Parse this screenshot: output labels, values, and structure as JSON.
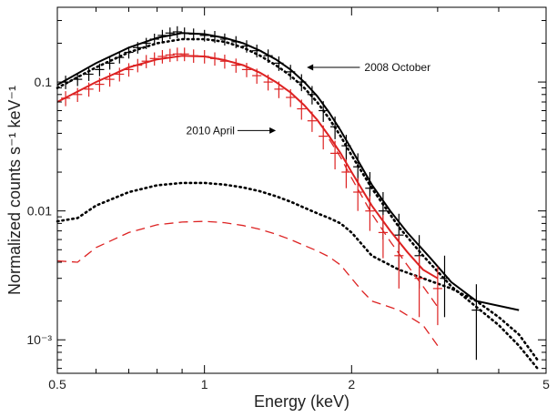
{
  "chart_data": {
    "type": "line",
    "xlabel": "Energy (keV)",
    "ylabel": "Normalized counts s⁻¹ keV⁻¹",
    "x_scale": "log",
    "y_scale": "log",
    "xlim": [
      0.5,
      5
    ],
    "ylim": [
      0.00055,
      0.38
    ],
    "x_ticks": [
      {
        "value": 0.5,
        "label": "0.5"
      },
      {
        "value": 1,
        "label": "1"
      },
      {
        "value": 2,
        "label": "2"
      },
      {
        "value": 5,
        "label": "5"
      }
    ],
    "y_ticks": [
      {
        "value": 0.1,
        "label": "0.1"
      },
      {
        "value": 0.01,
        "label": "0.01"
      },
      {
        "value": 0.001,
        "label": "10⁻³"
      }
    ],
    "annotations": [
      {
        "text": "2008 October",
        "x": 1.95,
        "y": 0.13
      },
      {
        "text": "2010 April",
        "x": 1.23,
        "y": 0.042
      }
    ],
    "series": [
      {
        "name": "2008 October",
        "kind": "data-with-errors",
        "color": "#000000",
        "points": [
          [
            0.52,
            0.1,
            0.012
          ],
          [
            0.55,
            0.105,
            0.012
          ],
          [
            0.58,
            0.115,
            0.013
          ],
          [
            0.61,
            0.125,
            0.014
          ],
          [
            0.64,
            0.14,
            0.015
          ],
          [
            0.67,
            0.155,
            0.016
          ],
          [
            0.7,
            0.17,
            0.018
          ],
          [
            0.73,
            0.185,
            0.019
          ],
          [
            0.76,
            0.2,
            0.02
          ],
          [
            0.79,
            0.215,
            0.022
          ],
          [
            0.82,
            0.23,
            0.024
          ],
          [
            0.85,
            0.24,
            0.025
          ],
          [
            0.88,
            0.245,
            0.026
          ],
          [
            0.91,
            0.24,
            0.025
          ],
          [
            0.95,
            0.235,
            0.025
          ],
          [
            1.0,
            0.23,
            0.024
          ],
          [
            1.05,
            0.225,
            0.024
          ],
          [
            1.1,
            0.215,
            0.023
          ],
          [
            1.16,
            0.205,
            0.022
          ],
          [
            1.22,
            0.19,
            0.021
          ],
          [
            1.28,
            0.175,
            0.02
          ],
          [
            1.35,
            0.16,
            0.019
          ],
          [
            1.42,
            0.14,
            0.018
          ],
          [
            1.5,
            0.12,
            0.016
          ],
          [
            1.58,
            0.1,
            0.015
          ],
          [
            1.66,
            0.08,
            0.013
          ],
          [
            1.75,
            0.06,
            0.011
          ],
          [
            1.85,
            0.045,
            0.009
          ],
          [
            1.95,
            0.032,
            0.007
          ],
          [
            2.06,
            0.022,
            0.006
          ],
          [
            2.18,
            0.015,
            0.005
          ],
          [
            2.32,
            0.01,
            0.004
          ],
          [
            2.5,
            0.0065,
            0.003
          ],
          [
            2.75,
            0.0045,
            0.002
          ],
          [
            3.1,
            0.003,
            0.0015
          ],
          [
            3.6,
            0.0017,
            0.001
          ]
        ]
      },
      {
        "name": "2008 October model",
        "kind": "model",
        "color": "#000000",
        "style": "solid",
        "points": [
          [
            0.5,
            0.095
          ],
          [
            0.6,
            0.14
          ],
          [
            0.7,
            0.185
          ],
          [
            0.8,
            0.22
          ],
          [
            0.9,
            0.24
          ],
          [
            1.0,
            0.235
          ],
          [
            1.1,
            0.22
          ],
          [
            1.2,
            0.2
          ],
          [
            1.3,
            0.175
          ],
          [
            1.4,
            0.15
          ],
          [
            1.5,
            0.125
          ],
          [
            1.6,
            0.1
          ],
          [
            1.7,
            0.078
          ],
          [
            1.8,
            0.058
          ],
          [
            1.9,
            0.042
          ],
          [
            2.0,
            0.03
          ],
          [
            2.2,
            0.016
          ],
          [
            2.4,
            0.01
          ],
          [
            2.6,
            0.0068
          ],
          [
            2.9,
            0.0043
          ],
          [
            3.2,
            0.0028
          ],
          [
            3.6,
            0.002
          ],
          [
            4.4,
            0.0017
          ]
        ]
      },
      {
        "name": "2008 October total (dotted)",
        "kind": "model",
        "color": "#000000",
        "style": "dotted",
        "points": [
          [
            0.5,
            0.09
          ],
          [
            0.6,
            0.13
          ],
          [
            0.7,
            0.17
          ],
          [
            0.8,
            0.2
          ],
          [
            0.9,
            0.215
          ],
          [
            1.0,
            0.215
          ],
          [
            1.1,
            0.205
          ],
          [
            1.2,
            0.185
          ],
          [
            1.3,
            0.16
          ],
          [
            1.4,
            0.135
          ],
          [
            1.5,
            0.112
          ],
          [
            1.6,
            0.09
          ],
          [
            1.7,
            0.07
          ],
          [
            1.8,
            0.052
          ],
          [
            1.9,
            0.038
          ],
          [
            2.0,
            0.027
          ],
          [
            2.2,
            0.015
          ],
          [
            2.5,
            0.0075
          ],
          [
            2.8,
            0.0045
          ],
          [
            3.2,
            0.0026
          ],
          [
            3.6,
            0.0018
          ],
          [
            4.0,
            0.0013
          ],
          [
            4.4,
            0.0009
          ],
          [
            4.8,
            0.0006
          ]
        ]
      },
      {
        "name": "2008 October component (dotted)",
        "kind": "model",
        "color": "#000000",
        "style": "dotted",
        "points": [
          [
            0.5,
            0.0083
          ],
          [
            0.55,
            0.0088
          ],
          [
            0.6,
            0.011
          ],
          [
            0.7,
            0.014
          ],
          [
            0.8,
            0.0158
          ],
          [
            0.9,
            0.0165
          ],
          [
            1.0,
            0.0165
          ],
          [
            1.1,
            0.016
          ],
          [
            1.2,
            0.0152
          ],
          [
            1.3,
            0.0142
          ],
          [
            1.4,
            0.013
          ],
          [
            1.5,
            0.0118
          ],
          [
            1.6,
            0.0106
          ],
          [
            1.7,
            0.0096
          ],
          [
            1.8,
            0.0088
          ],
          [
            1.9,
            0.008
          ],
          [
            2.0,
            0.0068
          ],
          [
            2.1,
            0.0055
          ],
          [
            2.2,
            0.0045
          ],
          [
            2.5,
            0.0035
          ],
          [
            2.8,
            0.003
          ],
          [
            3.2,
            0.0025
          ],
          [
            3.6,
            0.002
          ],
          [
            4.0,
            0.0015
          ],
          [
            4.4,
            0.0011
          ],
          [
            4.8,
            0.0007
          ]
        ]
      },
      {
        "name": "2010 April",
        "kind": "data-with-errors",
        "color": "#dd2222",
        "points": [
          [
            0.52,
            0.075,
            0.01
          ],
          [
            0.55,
            0.08,
            0.01
          ],
          [
            0.58,
            0.088,
            0.011
          ],
          [
            0.61,
            0.096,
            0.012
          ],
          [
            0.64,
            0.105,
            0.013
          ],
          [
            0.67,
            0.115,
            0.014
          ],
          [
            0.7,
            0.125,
            0.015
          ],
          [
            0.73,
            0.135,
            0.016
          ],
          [
            0.76,
            0.145,
            0.017
          ],
          [
            0.79,
            0.152,
            0.018
          ],
          [
            0.82,
            0.158,
            0.019
          ],
          [
            0.85,
            0.162,
            0.019
          ],
          [
            0.88,
            0.165,
            0.02
          ],
          [
            0.91,
            0.165,
            0.02
          ],
          [
            0.95,
            0.16,
            0.019
          ],
          [
            1.0,
            0.158,
            0.019
          ],
          [
            1.05,
            0.152,
            0.018
          ],
          [
            1.1,
            0.145,
            0.018
          ],
          [
            1.16,
            0.135,
            0.017
          ],
          [
            1.22,
            0.125,
            0.016
          ],
          [
            1.28,
            0.112,
            0.015
          ],
          [
            1.35,
            0.1,
            0.014
          ],
          [
            1.42,
            0.088,
            0.013
          ],
          [
            1.5,
            0.076,
            0.012
          ],
          [
            1.58,
            0.062,
            0.011
          ],
          [
            1.66,
            0.05,
            0.009
          ],
          [
            1.75,
            0.038,
            0.008
          ],
          [
            1.85,
            0.028,
            0.007
          ],
          [
            1.95,
            0.02,
            0.005
          ],
          [
            2.06,
            0.014,
            0.004
          ],
          [
            2.18,
            0.01,
            0.003
          ],
          [
            2.32,
            0.0068,
            0.0025
          ],
          [
            2.5,
            0.0045,
            0.002
          ],
          [
            2.75,
            0.003,
            0.0015
          ],
          [
            3.0,
            0.0025,
            0.0012
          ]
        ]
      },
      {
        "name": "2010 April model",
        "kind": "model",
        "color": "#dd2222",
        "style": "solid",
        "points": [
          [
            0.5,
            0.07
          ],
          [
            0.6,
            0.1
          ],
          [
            0.7,
            0.13
          ],
          [
            0.8,
            0.15
          ],
          [
            0.9,
            0.16
          ],
          [
            1.0,
            0.158
          ],
          [
            1.1,
            0.148
          ],
          [
            1.2,
            0.135
          ],
          [
            1.3,
            0.118
          ],
          [
            1.4,
            0.1
          ],
          [
            1.5,
            0.083
          ],
          [
            1.6,
            0.066
          ],
          [
            1.7,
            0.051
          ],
          [
            1.8,
            0.038
          ],
          [
            1.9,
            0.028
          ],
          [
            2.0,
            0.02
          ],
          [
            2.2,
            0.011
          ],
          [
            2.4,
            0.007
          ],
          [
            2.6,
            0.0048
          ],
          [
            2.8,
            0.0035
          ],
          [
            3.0,
            0.003
          ]
        ]
      },
      {
        "name": "2010 April component (dashed)",
        "kind": "model",
        "color": "#dd2222",
        "style": "dashed",
        "points": [
          [
            0.5,
            0.0041
          ],
          [
            0.55,
            0.004
          ],
          [
            0.6,
            0.0052
          ],
          [
            0.7,
            0.0068
          ],
          [
            0.8,
            0.0078
          ],
          [
            0.9,
            0.0082
          ],
          [
            1.0,
            0.0083
          ],
          [
            1.1,
            0.0081
          ],
          [
            1.2,
            0.0077
          ],
          [
            1.3,
            0.0072
          ],
          [
            1.4,
            0.0066
          ],
          [
            1.5,
            0.006
          ],
          [
            1.6,
            0.0054
          ],
          [
            1.7,
            0.0049
          ],
          [
            1.8,
            0.0044
          ],
          [
            1.9,
            0.0038
          ],
          [
            2.0,
            0.003
          ],
          [
            2.1,
            0.0024
          ],
          [
            2.2,
            0.002
          ],
          [
            2.5,
            0.0017
          ],
          [
            2.8,
            0.0013
          ],
          [
            3.0,
            0.0009
          ]
        ]
      },
      {
        "name": "2010 April total (dashed)",
        "kind": "model",
        "color": "#dd2222",
        "style": "dashed",
        "points": [
          [
            1.8,
            0.036
          ],
          [
            1.9,
            0.026
          ],
          [
            2.0,
            0.018
          ],
          [
            2.2,
            0.0095
          ],
          [
            2.4,
            0.0058
          ],
          [
            2.6,
            0.0038
          ],
          [
            2.8,
            0.0026
          ],
          [
            3.0,
            0.0018
          ]
        ]
      }
    ]
  }
}
